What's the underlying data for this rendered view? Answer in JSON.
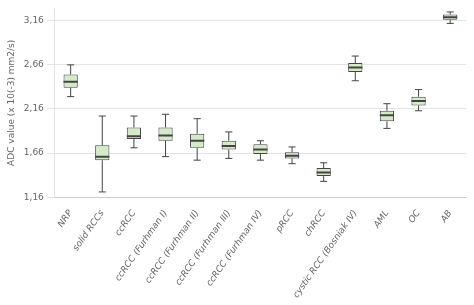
{
  "chart_data": {
    "type": "box",
    "categories": [
      "NRP",
      "solid RCCs",
      "ccRCC",
      "ccRCC (Furhman I)",
      "ccRCC (Furhman II)",
      "ccRCC (Furhman III)",
      "ccRCC (Furhman IV)",
      "pRCC",
      "chRCC",
      "cystic RCC (Bosniak IV)",
      "AML",
      "OC",
      "AB"
    ],
    "boxes": [
      {
        "whislo": 2.3,
        "q1": 2.4,
        "med": 2.47,
        "q3": 2.55,
        "whishi": 2.66
      },
      {
        "whislo": 1.22,
        "q1": 1.58,
        "med": 1.62,
        "q3": 1.75,
        "whishi": 2.08
      },
      {
        "whislo": 1.72,
        "q1": 1.82,
        "med": 1.85,
        "q3": 1.95,
        "whishi": 2.08
      },
      {
        "whislo": 1.62,
        "q1": 1.8,
        "med": 1.86,
        "q3": 1.95,
        "whishi": 2.1
      },
      {
        "whislo": 1.58,
        "q1": 1.72,
        "med": 1.8,
        "q3": 1.88,
        "whishi": 2.05
      },
      {
        "whislo": 1.6,
        "q1": 1.7,
        "med": 1.74,
        "q3": 1.8,
        "whishi": 1.9
      },
      {
        "whislo": 1.58,
        "q1": 1.65,
        "med": 1.7,
        "q3": 1.76,
        "whishi": 1.8
      },
      {
        "whislo": 1.54,
        "q1": 1.6,
        "med": 1.63,
        "q3": 1.67,
        "whishi": 1.73
      },
      {
        "whislo": 1.34,
        "q1": 1.4,
        "med": 1.44,
        "q3": 1.49,
        "whishi": 1.55
      },
      {
        "whislo": 2.48,
        "q1": 2.58,
        "med": 2.63,
        "q3": 2.68,
        "whishi": 2.76
      },
      {
        "whislo": 1.94,
        "q1": 2.02,
        "med": 2.09,
        "q3": 2.14,
        "whishi": 2.22
      },
      {
        "whislo": 2.14,
        "q1": 2.2,
        "med": 2.25,
        "q3": 2.3,
        "whishi": 2.38
      },
      {
        "whislo": 3.13,
        "q1": 3.17,
        "med": 3.2,
        "q3": 3.23,
        "whishi": 3.26
      }
    ],
    "ylabel": "ADC value (x 10(-3) mm2/s)",
    "ylim": [
      1.16,
      3.3
    ],
    "yticks": [
      {
        "value": 1.16,
        "label": "1,16"
      },
      {
        "value": 1.66,
        "label": "1,66"
      },
      {
        "value": 2.16,
        "label": "2,16"
      },
      {
        "value": 2.66,
        "label": "2,66"
      },
      {
        "value": 3.16,
        "label": "3,16"
      }
    ],
    "color": "#d4eac8",
    "grid": true
  }
}
